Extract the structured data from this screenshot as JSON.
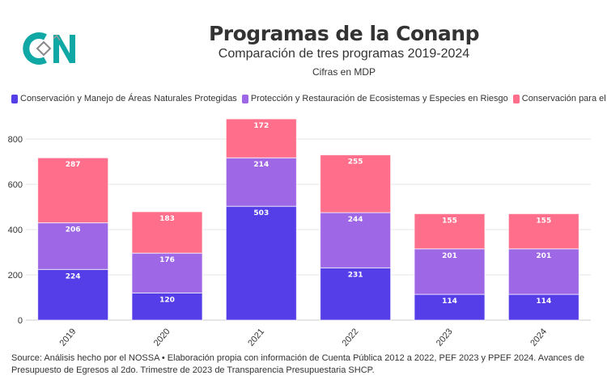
{
  "header": {
    "logo_text": "CN",
    "title": "Programas de la Conanp",
    "subtitle": "Comparación de tres programas 2019-2024",
    "unit": "Cifras en MDP"
  },
  "chart_data": {
    "type": "bar",
    "stacked": true,
    "title": "Programas de la Conanp",
    "subtitle": "Comparación de tres programas 2019-2024",
    "categories": [
      "2019",
      "2020",
      "2021",
      "2022",
      "2023",
      "2024"
    ],
    "series": [
      {
        "name": "Conservación y Manejo de Áreas Naturales Protegidas",
        "color": "#553de8",
        "values": [
          224,
          120,
          503,
          231,
          114,
          114
        ]
      },
      {
        "name": "Protección y Restauración de Ecosistemas y Especies en Riesgo",
        "color": "#9d67e6",
        "values": [
          206,
          176,
          214,
          244,
          201,
          201
        ]
      },
      {
        "name": "Conservación para el Desarrollo Sostenible",
        "color": "#ff6f8b",
        "values": [
          287,
          183,
          172,
          255,
          155,
          155
        ]
      }
    ],
    "ylim": [
      0,
      900
    ],
    "yticks": [
      0,
      200,
      400,
      600,
      800
    ],
    "grid": true,
    "legend_placement": "top-left"
  },
  "footer": {
    "source": "Source: Análisis hecho por el NOSSA • Elaboración propia con información de Cuenta Pública 2012 a 2022, PEF 2023 y PPEF 2024. Avances de Presupuesto de Egresos al 2do. Trimestre de 2023 de Transparencia Presupuestaria SHCP."
  }
}
